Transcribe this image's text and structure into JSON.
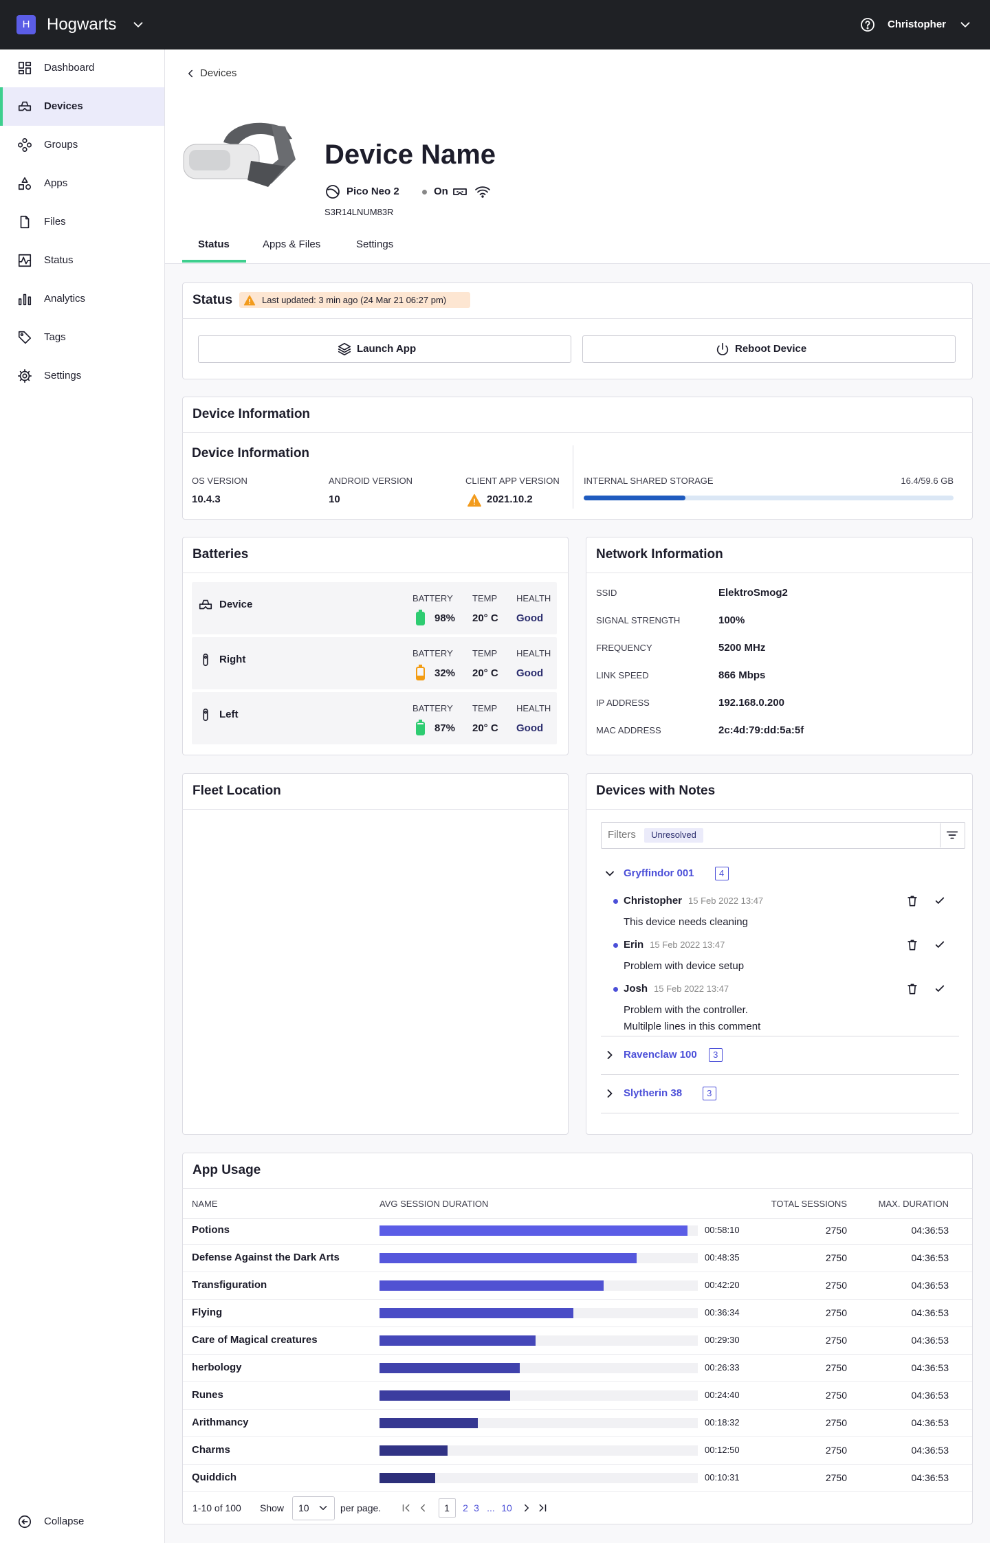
{
  "topbar": {
    "org_initial": "H",
    "org_name": "Hogwarts",
    "user": "Christopher"
  },
  "sidebar": {
    "items": [
      {
        "label": "Dashboard",
        "active": false
      },
      {
        "label": "Devices",
        "active": true
      },
      {
        "label": "Groups",
        "active": false
      },
      {
        "label": "Apps",
        "active": false
      },
      {
        "label": "Files",
        "active": false
      },
      {
        "label": "Status",
        "active": false
      },
      {
        "label": "Analytics",
        "active": false
      },
      {
        "label": "Tags",
        "active": false
      },
      {
        "label": "Settings",
        "active": false
      }
    ],
    "collapse": "Collapse"
  },
  "breadcrumb": "Devices",
  "device": {
    "name": "Device Name",
    "model": "Pico Neo 2",
    "power": "On",
    "serial": "S3R14LNUM83R"
  },
  "tabs": [
    {
      "label": "Status",
      "active": true
    },
    {
      "label": "Apps & Files",
      "active": false
    },
    {
      "label": "Settings",
      "active": false
    }
  ],
  "status": {
    "title": "Status",
    "last_updated": "Last updated: 3 min ago (24 Mar 21 06:27 pm)",
    "actions": [
      "Launch App",
      "Reboot Device"
    ]
  },
  "device_info": {
    "title": "Device Information",
    "subtitle": "Device Information",
    "fields": [
      {
        "label": "OS VERSION",
        "value": "10.4.3",
        "warning": false
      },
      {
        "label": "ANDROID VERSION",
        "value": "10",
        "warning": false
      },
      {
        "label": "CLIENT APP VERSION",
        "value": "2021.10.2",
        "warning": true
      }
    ],
    "storage": {
      "label": "INTERNAL SHARED STORAGE",
      "value": "16.4/59.6 GB"
    }
  },
  "batteries": {
    "title": "Batteries",
    "columns": [
      "BATTERY",
      "TEMP",
      "HEALTH"
    ],
    "rows": [
      {
        "name": "Device",
        "battery": "98%",
        "temp": "20° C",
        "health": "Good",
        "color": "#2ecc71"
      },
      {
        "name": "Right",
        "battery": "32%",
        "temp": "20° C",
        "health": "Good",
        "color": "#f39c12"
      },
      {
        "name": "Left",
        "battery": "87%",
        "temp": "20° C",
        "health": "Good",
        "color": "#2ecc71"
      }
    ]
  },
  "network": {
    "title": "Network Information",
    "rows": [
      {
        "label": "SSID",
        "value": "ElektroSmog2"
      },
      {
        "label": "SIGNAL STRENGTH",
        "value": "100%"
      },
      {
        "label": "FREQUENCY",
        "value": "5200 MHz"
      },
      {
        "label": "LINK SPEED",
        "value": "866 Mbps"
      },
      {
        "label": "IP ADDRESS",
        "value": "192.168.0.200"
      },
      {
        "label": "MAC ADDRESS",
        "value": "2c:4d:79:dd:5a:5f"
      }
    ]
  },
  "fleet_location": {
    "title": "Fleet Location"
  },
  "notes": {
    "title": "Devices with Notes",
    "filter_label": "Filters",
    "filter_chip": "Unresolved",
    "groups": [
      {
        "name": "Gryffindor 001",
        "count": 4,
        "expanded": true,
        "notes": [
          {
            "author": "Christopher",
            "time": "15 Feb 2022 13:47",
            "text": [
              "This device needs cleaning"
            ]
          },
          {
            "author": "Erin",
            "time": "15 Feb 2022 13:47",
            "text": [
              "Problem with device setup"
            ]
          },
          {
            "author": "Josh",
            "time": "15 Feb 2022 13:47",
            "text": [
              "Problem with the controller.",
              "Multilple lines in this comment"
            ]
          }
        ]
      },
      {
        "name": "Ravenclaw 100",
        "count": 3,
        "expanded": false,
        "notes": []
      },
      {
        "name": "Slytherin 38",
        "count": 3,
        "expanded": false,
        "notes": []
      }
    ]
  },
  "app_usage": {
    "title": "App Usage",
    "columns": [
      "NAME",
      "AVG SESSION DURATION",
      "TOTAL SESSIONS",
      "MAX. DURATION"
    ],
    "rows": [
      {
        "name": "Potions",
        "avg": "00:58:10",
        "sessions": 2750,
        "max": "04:36:53",
        "color": "#5b5de6"
      },
      {
        "name": "Defense Against the Dark Arts",
        "avg": "00:48:35",
        "sessions": 2750,
        "max": "04:36:53",
        "color": "#5557dc"
      },
      {
        "name": "Transfiguration",
        "avg": "00:42:20",
        "sessions": 2750,
        "max": "04:36:53",
        "color": "#5052d2"
      },
      {
        "name": "Flying",
        "avg": "00:36:34",
        "sessions": 2750,
        "max": "04:36:53",
        "color": "#4a4cc6"
      },
      {
        "name": "Care of Magical creatures",
        "avg": "00:29:30",
        "sessions": 2750,
        "max": "04:36:53",
        "color": "#4547b9"
      },
      {
        "name": "herbology",
        "avg": "00:26:33",
        "sessions": 2750,
        "max": "04:36:53",
        "color": "#4042ac"
      },
      {
        "name": "Runes",
        "avg": "00:24:40",
        "sessions": 2750,
        "max": "04:36:53",
        "color": "#3b3d9f"
      },
      {
        "name": "Arithmancy",
        "avg": "00:18:32",
        "sessions": 2750,
        "max": "04:36:53",
        "color": "#363892"
      },
      {
        "name": "Charms",
        "avg": "00:12:50",
        "sessions": 2750,
        "max": "04:36:53",
        "color": "#313385"
      },
      {
        "name": "Quiddich",
        "avg": "00:10:31",
        "sessions": 2750,
        "max": "04:36:53",
        "color": "#2d2f7a"
      }
    ],
    "pagination": {
      "range": "1-10 of 100",
      "show": "Show",
      "page_size": 10,
      "per_page": "per page.",
      "pages": [
        "1",
        "2",
        "3",
        "...",
        "10"
      ],
      "current": 0
    }
  }
}
